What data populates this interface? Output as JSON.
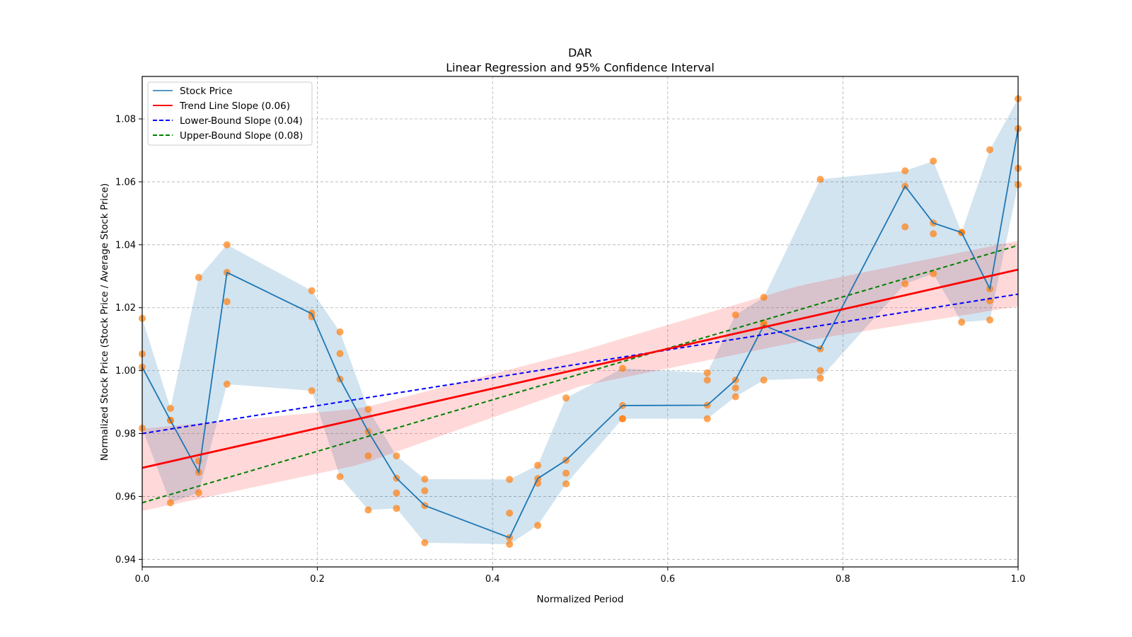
{
  "chart_data": {
    "type": "line",
    "title": "DAR",
    "subtitle": "Linear Regression and 95% Confidence Interval",
    "xlabel": "Normalized Period",
    "ylabel": "Normalized Stock Price (Stock Price / Average Stock Price)",
    "xlim": [
      0.0,
      1.0
    ],
    "ylim": [
      0.9376,
      1.0935
    ],
    "xticks": [
      0.0,
      0.2,
      0.4,
      0.6,
      0.8,
      1.0
    ],
    "xtick_labels": [
      "0.0",
      "0.2",
      "0.4",
      "0.6",
      "0.8",
      "1.0"
    ],
    "yticks": [
      0.94,
      0.96,
      0.98,
      1.0,
      1.02,
      1.04,
      1.06,
      1.08
    ],
    "ytick_labels": [
      "0.94",
      "0.96",
      "0.98",
      "1.00",
      "1.02",
      "1.04",
      "1.06",
      "1.08"
    ],
    "grid": true,
    "legend_position": "top-left",
    "legend": [
      {
        "label": "Stock Price",
        "color": "#1f77b4",
        "style": "solid"
      },
      {
        "label": "Trend Line Slope (0.06)",
        "color": "#ff0000",
        "style": "solid"
      },
      {
        "label": "Lower-Bound Slope (0.04)",
        "color": "#0000ff",
        "style": "dashed"
      },
      {
        "label": "Upper-Bound Slope (0.08)",
        "color": "#008000",
        "style": "dashed"
      }
    ],
    "x_index_divisor": 31,
    "stock_price": {
      "name": "Stock Price",
      "color": "#1f77b4",
      "x_index": [
        0,
        1,
        2,
        3,
        6,
        7,
        8,
        9,
        10,
        13,
        14,
        15,
        17,
        20,
        21,
        22,
        24,
        27,
        28,
        29,
        30,
        31
      ],
      "values": [
        1.0011,
        0.9842,
        0.9677,
        1.0312,
        1.0181,
        0.9973,
        0.9806,
        0.9658,
        0.9571,
        0.9469,
        0.9657,
        0.9715,
        0.9889,
        0.989,
        0.997,
        1.0144,
        1.0069,
        1.0586,
        1.0469,
        1.0439,
        1.026,
        1.0769
      ]
    },
    "scatter_points": {
      "color": "#ff7f0e",
      "x_index": [
        0,
        1,
        2,
        3,
        6,
        7,
        8,
        9,
        10,
        13,
        14,
        15,
        17,
        20,
        21,
        22,
        24,
        27,
        28,
        29,
        30,
        31
      ],
      "values": [
        [
          1.0166,
          1.0053,
          1.0011,
          0.9817
        ],
        [
          0.988,
          0.9842,
          0.9842,
          0.958
        ],
        [
          1.0296,
          0.9713,
          0.9677,
          0.9612
        ],
        [
          1.04,
          1.0312,
          1.0219,
          0.9957
        ],
        [
          1.0254,
          1.0183,
          1.0171,
          0.9936
        ],
        [
          1.0123,
          1.0054,
          0.9973,
          0.9663
        ],
        [
          0.9877,
          0.9806,
          0.9729,
          0.9557
        ],
        [
          0.9729,
          0.9658,
          0.9611,
          0.9562
        ],
        [
          0.9655,
          0.9618,
          0.9571,
          0.9453
        ],
        [
          0.9654,
          0.9547,
          0.9469,
          0.9448
        ],
        [
          0.9699,
          0.9657,
          0.9642,
          0.9508
        ],
        [
          0.9913,
          0.9715,
          0.9674,
          0.964
        ],
        [
          1.0007,
          0.9889,
          0.9847,
          0.9847
        ],
        [
          0.9993,
          0.997,
          0.989,
          0.9847
        ],
        [
          1.0177,
          0.997,
          0.9945,
          0.9917
        ],
        [
          1.0233,
          1.0151,
          1.0144,
          0.997
        ],
        [
          1.0608,
          1.0069,
          1.0,
          0.9976
        ],
        [
          1.0635,
          1.0586,
          1.0457,
          1.0276
        ],
        [
          1.0666,
          1.0469,
          1.0435,
          1.0308
        ],
        [
          1.0439,
          1.0439,
          1.0439,
          1.0154
        ],
        [
          1.0702,
          1.026,
          1.0222,
          1.0161
        ],
        [
          1.0864,
          1.0769,
          1.0643,
          1.0591
        ]
      ]
    },
    "range_band": {
      "color": "#1f77b4",
      "opacity": 0.2,
      "description": "min-max range per period"
    },
    "trend_line": {
      "name": "Trend Line Slope (0.06)",
      "color": "#ff0000",
      "intercept": 0.9691,
      "slope": 0.063
    },
    "lower_bound_line": {
      "name": "Lower-Bound Slope (0.04)",
      "color": "#0000ff",
      "intercept": 0.98,
      "slope": 0.0443
    },
    "upper_bound_line": {
      "name": "Upper-Bound Slope (0.08)",
      "color": "#008000",
      "intercept": 0.958,
      "slope": 0.0818
    },
    "confidence_band": {
      "color": "#ff0000",
      "opacity": 0.15,
      "x": [
        0.0,
        0.25,
        0.5,
        0.75,
        1.0
      ],
      "lower": [
        0.9554,
        0.9702,
        0.995,
        1.0092,
        1.0204
      ],
      "upper": [
        0.9815,
        0.988,
        1.0062,
        1.027,
        1.0413
      ]
    }
  }
}
